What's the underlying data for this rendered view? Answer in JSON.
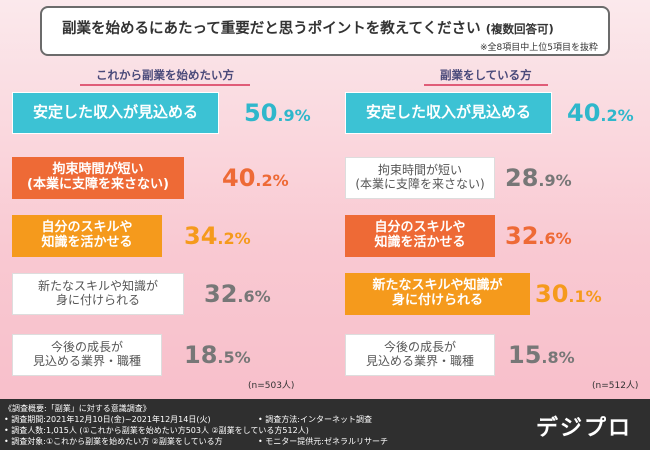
{
  "title": "副業を始めるにあたって重要だと思うポイントを教えてください",
  "title_sub": "(複数回答可)",
  "title_note": "※全8項目中上位5項目を抜粋",
  "chart_data": [
    {
      "type": "bar",
      "title": "これから副業を始めたい方",
      "n_label": "(n=503人)",
      "categories": [
        [
          "安定した収入が見込める"
        ],
        [
          "拘束時間が短い",
          "(本業に支障を来さない)"
        ],
        [
          "自分のスキルや",
          "知識を活かせる"
        ],
        [
          "新たなスキルや知識が",
          "身に付けられる"
        ],
        [
          "今後の成長が",
          "見込める業界・職種"
        ]
      ],
      "values": [
        50.9,
        40.2,
        34.2,
        32.6,
        18.5
      ],
      "value_labels": [
        {
          "d": "50",
          "u": ".9%"
        },
        {
          "d": "40",
          "u": ".2%"
        },
        {
          "d": "34",
          "u": ".2%"
        },
        {
          "d": "32",
          "u": ".6%"
        },
        {
          "d": "18",
          "u": ".5%"
        }
      ]
    },
    {
      "type": "bar",
      "title": "副業をしている方",
      "n_label": "(n=512人)",
      "categories": [
        [
          "安定した収入が見込める"
        ],
        [
          "拘束時間が短い",
          "(本業に支障を来さない)"
        ],
        [
          "自分のスキルや",
          "知識を活かせる"
        ],
        [
          "新たなスキルや知識が",
          "身に付けられる"
        ],
        [
          "今後の成長が",
          "見込める業界・職種"
        ]
      ],
      "values": [
        40.2,
        28.9,
        32.6,
        30.1,
        15.8
      ],
      "value_labels": [
        {
          "d": "40",
          "u": ".2%"
        },
        {
          "d": "28",
          "u": ".9%"
        },
        {
          "d": "32",
          "u": ".6%"
        },
        {
          "d": "30",
          "u": ".1%"
        },
        {
          "d": "15",
          "u": ".8%"
        }
      ]
    }
  ],
  "colors": {
    "teal": "#3cc2d4",
    "orangered": "#ee6a36",
    "orange": "#f59a1c",
    "gray": "#777777"
  },
  "footer": {
    "lines": [
      "《調査概要:「副業」に対する意識調査》",
      "• 調査期間:2021年12月10日(金)~2021年12月14日(火)",
      "• 調査方法:インターネット調査",
      "• 調査人数:1,015人 (①これから副業を始めたい方503人 ②副業をしている方512人)",
      "• 調査対象:①これから副業を始めたい方 ②副業をしている方",
      "• モニター提供元:ゼネラルリサーチ"
    ],
    "brand": "デジプロ"
  }
}
